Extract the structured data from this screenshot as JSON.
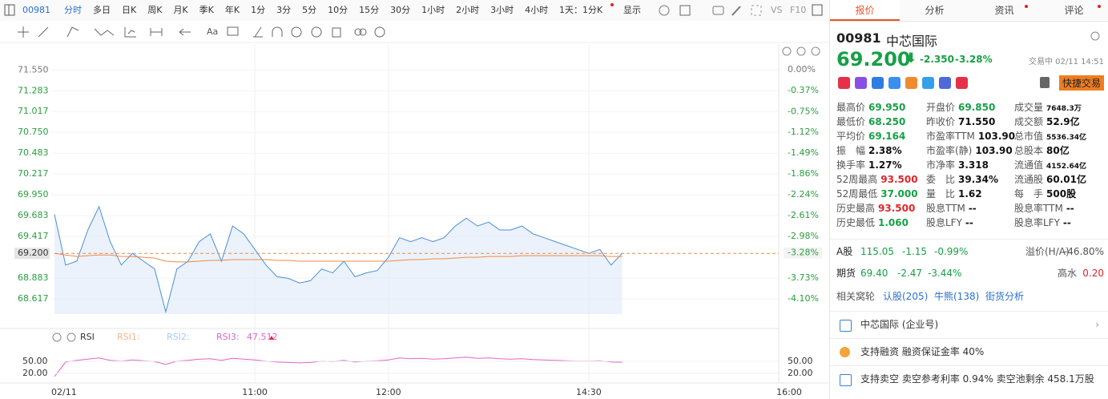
{
  "toolbar": {
    "symbol": "00981",
    "periods": [
      "分时",
      "多日",
      "日K",
      "周K",
      "月K",
      "季K",
      "年K",
      "1分",
      "3分",
      "5分",
      "10分",
      "15分",
      "30分",
      "1小时",
      "2小时",
      "3小时",
      "4小时"
    ],
    "interval": "1天：1分K",
    "display": "显示",
    "vs": "VS",
    "f10": "F10"
  },
  "chart_data": [
    {
      "type": "line",
      "categories": [
        "02/11",
        null,
        null,
        null,
        null,
        null,
        null,
        null,
        null,
        null,
        null,
        null,
        null,
        null,
        null,
        null,
        null,
        null,
        "11:00",
        null,
        null,
        null,
        null,
        null,
        null,
        null,
        null,
        null,
        null,
        null,
        "12:00",
        null,
        null,
        null,
        null,
        null,
        null,
        null,
        null,
        null,
        null,
        null,
        null,
        null,
        null,
        null,
        null,
        null,
        "14:30",
        null,
        null,
        null,
        null,
        null,
        null,
        null,
        null,
        null,
        null,
        null,
        null,
        null,
        null,
        null,
        null,
        null,
        "16:00"
      ],
      "series": [
        {
          "color": "#4a8fdc",
          "values": [
            69.7,
            69.05,
            69.1,
            69.5,
            69.8,
            69.35,
            69.05,
            69.2,
            69.1,
            69.0,
            68.45,
            69.0,
            69.1,
            69.35,
            69.45,
            69.1,
            69.55,
            69.45,
            69.25,
            69.05,
            68.9,
            68.88,
            68.82,
            68.85,
            69.0,
            68.95,
            69.1,
            68.9,
            68.95,
            68.98,
            69.15,
            69.4,
            69.35,
            69.4,
            69.35,
            69.4,
            69.55,
            69.65,
            69.55,
            69.6,
            69.5,
            69.5,
            69.55,
            69.45,
            69.4,
            69.35,
            69.3,
            69.25,
            69.2,
            69.25,
            69.05,
            69.2,
            null,
            null,
            null,
            null,
            null,
            null,
            null,
            null,
            null,
            null,
            null,
            null,
            null,
            null,
            null
          ]
        },
        {
          "color": "#f08a44",
          "values": [
            69.2,
            69.18,
            69.16,
            69.17,
            69.18,
            69.18,
            69.16,
            69.16,
            69.15,
            69.14,
            69.1,
            69.09,
            69.09,
            69.1,
            69.11,
            69.11,
            69.12,
            69.12,
            69.12,
            69.12,
            69.11,
            69.11,
            69.1,
            69.1,
            69.1,
            69.1,
            69.1,
            69.1,
            69.1,
            69.1,
            69.1,
            69.11,
            69.12,
            69.12,
            69.13,
            69.13,
            69.14,
            69.15,
            69.15,
            69.16,
            69.16,
            69.16,
            69.17,
            69.17,
            69.17,
            69.17,
            69.17,
            69.17,
            69.17,
            69.17,
            69.16,
            69.16,
            null,
            null,
            null,
            null,
            null,
            null,
            null,
            null,
            null,
            null,
            null,
            null,
            null,
            null,
            null
          ]
        }
      ],
      "last_price": 69.2,
      "ylim": [
        68.34,
        71.83
      ],
      "yticks": [
        {
          "value": 71.55,
          "label": "71.550"
        },
        {
          "value": 71.283,
          "label": "71.283"
        },
        {
          "value": 71.017,
          "label": "71.017"
        },
        {
          "value": 70.75,
          "label": "70.750"
        },
        {
          "value": 70.483,
          "label": "70.483"
        },
        {
          "value": 70.217,
          "label": "70.217"
        },
        {
          "value": 69.95,
          "label": "69.950"
        },
        {
          "value": 69.683,
          "label": "69.683"
        },
        {
          "value": 69.417,
          "label": "69.417"
        },
        {
          "value": 69.2,
          "label": "69.200"
        },
        {
          "value": 68.883,
          "label": "68.883"
        },
        {
          "value": 68.617,
          "label": "68.617"
        }
      ],
      "y2lim": [
        -4.49,
        0.39
      ],
      "y2ticks": [
        {
          "value": 0,
          "label": "0.00%"
        },
        {
          "value": -0.37,
          "label": "-0.37%"
        },
        {
          "value": -0.75,
          "label": "-0.75%"
        },
        {
          "value": -1.12,
          "label": "-1.12%"
        },
        {
          "value": -1.49,
          "label": "-1.49%"
        },
        {
          "value": -1.86,
          "label": "-1.86%"
        },
        {
          "value": -2.24,
          "label": "-2.24%"
        },
        {
          "value": -2.61,
          "label": "-2.61%"
        },
        {
          "value": -2.98,
          "label": "-2.98%"
        },
        {
          "value": -3.28,
          "label": "-3.28%"
        },
        {
          "value": -3.73,
          "label": "-3.73%"
        },
        {
          "value": -4.1,
          "label": "-4.10%"
        }
      ],
      "grid": true
    },
    {
      "type": "line",
      "title": "RSI",
      "legend": [
        {
          "name": "RSI1:",
          "color": "#f5b58a"
        },
        {
          "name": "RSI2:",
          "color": "#a6c8ec"
        }
      ],
      "series": [
        {
          "name": "RSI3:",
          "color": "#e066c8",
          "values": [
            12,
            48,
            52,
            55,
            58,
            52,
            50,
            53,
            51,
            49,
            42,
            50,
            52,
            55,
            56,
            52,
            57,
            55,
            53,
            50,
            48,
            47,
            46,
            47,
            50,
            49,
            52,
            48,
            50,
            51,
            53,
            58,
            56,
            57,
            55,
            56,
            58,
            60,
            57,
            58,
            56,
            55,
            56,
            54,
            53,
            52,
            51,
            50,
            50,
            51,
            48,
            47.512,
            null,
            null,
            null,
            null,
            null,
            null,
            null,
            null,
            null,
            null,
            null,
            null,
            null,
            null,
            null
          ]
        }
      ],
      "ylim": [
        -3.6,
        71.4
      ],
      "yticks": [
        {
          "value": 50,
          "label": "50.00"
        },
        {
          "value": 20,
          "label": "20.00"
        }
      ]
    }
  ],
  "panel": {
    "tabs": [
      "报价",
      "分析",
      "资讯",
      "评论"
    ],
    "code": "00981",
    "name": "中芯国际",
    "price": "69.200",
    "change": "-2.350",
    "change_pct": "-3.28%",
    "status": "交易中 02/11 14:51",
    "quick_trade": "快捷交易",
    "stats": [
      [
        {
          "label": "最高价",
          "value": "69.950",
          "color": "#17a046"
        },
        {
          "label": "开盘价",
          "value": "69.850",
          "color": "#17a046"
        },
        {
          "label": "成交量",
          "value": "7648.3万"
        }
      ],
      [
        {
          "label": "最低价",
          "value": "68.250",
          "color": "#17a046"
        },
        {
          "label": "昨收价",
          "value": "71.550"
        },
        {
          "label": "成交额",
          "value": "52.9亿"
        }
      ],
      [
        {
          "label": "平均价",
          "value": "69.164",
          "color": "#17a046"
        },
        {
          "label": "市盈率TTM",
          "value": "103.90"
        },
        {
          "label": "总市值",
          "value": "5536.34亿"
        }
      ],
      [
        {
          "label": "振　幅",
          "value": "2.38%"
        },
        {
          "label": "市盈率(静)",
          "value": "103.90"
        },
        {
          "label": "总股本",
          "value": "80亿"
        }
      ],
      [
        {
          "label": "换手率",
          "value": "1.27%"
        },
        {
          "label": "市净率",
          "value": "3.318"
        },
        {
          "label": "流通值",
          "value": "4152.64亿"
        }
      ],
      [
        {
          "label": "52周最高",
          "value": "93.500",
          "color": "#e0262b"
        },
        {
          "label": "委　比",
          "value": "39.34%"
        },
        {
          "label": "流通股",
          "value": "60.01亿"
        }
      ],
      [
        {
          "label": "52周最低",
          "value": "37.000",
          "color": "#17a046"
        },
        {
          "label": "量　比",
          "value": "1.62"
        },
        {
          "label": "每　手",
          "value": "500股"
        }
      ],
      [
        {
          "label": "历史最高",
          "value": "93.500",
          "color": "#e0262b"
        },
        {
          "label": "股息TTM",
          "value": "--"
        },
        {
          "label": "股息率TTM",
          "value": "--"
        }
      ],
      [
        {
          "label": "历史最低",
          "value": "1.060",
          "color": "#17a046"
        },
        {
          "label": "股息LFY",
          "value": "--"
        },
        {
          "label": "股息率LFY",
          "value": "--"
        }
      ]
    ],
    "a_share": {
      "label": "A股",
      "price": "115.05",
      "change": "-1.15",
      "pct": "-0.99%",
      "premium_label": "溢价(H/A)",
      "premium": "-46.80%"
    },
    "futures": {
      "label": "期货",
      "price": "69.40",
      "change": "-2.47",
      "pct": "-3.44%",
      "premium_label": "高水",
      "premium": "0.20"
    },
    "warrants": {
      "label": "相关窝轮",
      "links": [
        "认股(205)",
        "牛熊(138)",
        "街货分析"
      ]
    },
    "items": [
      "中芯国际 (企业号)",
      "支持融资 融资保证金率 40%",
      "支持卖空 卖空参考利率 0.94% 卖空池剩余 458.1万股"
    ]
  }
}
